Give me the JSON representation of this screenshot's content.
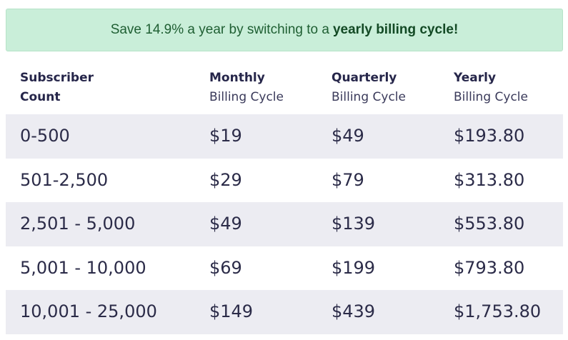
{
  "banner": {
    "text": "Save 14.9% a year by switching to a",
    "emphasis": "yearly billing cycle!"
  },
  "table": {
    "headers": [
      {
        "title": "Subscriber",
        "subtitle": "Count"
      },
      {
        "title": "Monthly",
        "subtitle": "Billing Cycle"
      },
      {
        "title": "Quarterly",
        "subtitle": "Billing Cycle"
      },
      {
        "title": "Yearly",
        "subtitle": "Billing Cycle"
      }
    ],
    "rows": [
      [
        "0-500",
        "$19",
        "$49",
        "$193.80"
      ],
      [
        "501-2,500",
        "$29",
        "$79",
        "$313.80"
      ],
      [
        "2,501 - 5,000",
        "$49",
        "$139",
        "$553.80"
      ],
      [
        "5,001 - 10,000",
        "$69",
        "$199",
        "$793.80"
      ],
      [
        "10,001 - 25,000",
        "$149",
        "$439",
        "$1,753.80"
      ]
    ]
  },
  "colors": {
    "banner_bg": "#c9eed9",
    "banner_text": "#1f5f33",
    "row_shade": "#ececf2",
    "text": "#2b2b48"
  }
}
